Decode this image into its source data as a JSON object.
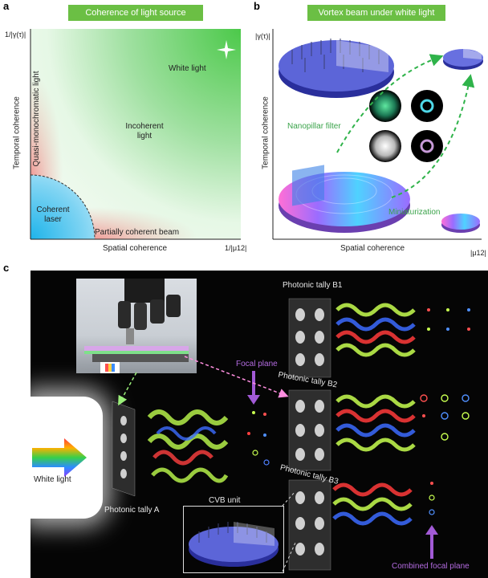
{
  "panel_a": {
    "letter": "a",
    "banner": "Coherence of light source",
    "y_axis_marker": "1/|γ(τ)|",
    "x_axis_marker": "1/|μ12|",
    "y_label": "Temporal coherence",
    "x_label": "Spatial coherence",
    "regions": {
      "white": "White light",
      "incoherent_1": "Incoherent",
      "incoherent_2": "light",
      "quasi": "Quasi-monochromatic light",
      "coherent_1": "Coherent",
      "coherent_2": "laser",
      "partial": "Partially coherent beam"
    }
  },
  "panel_b": {
    "letter": "b",
    "banner": "Vortex beam under white light",
    "y_axis_marker": "|γ(τ)|",
    "x_axis_marker": "|μ12|",
    "y_label": "Temporal coherence",
    "x_label": "Spatial coherence",
    "nanopillar": "Nanopillar filter",
    "miniaturization": "Miniaturization"
  },
  "panel_c": {
    "letter": "c",
    "tally_b1": "Photonic tally B1",
    "tally_b2": "Photonic tally B2",
    "tally_b3": "Photonic tally B3",
    "tally_a": "Photonic tally A",
    "focal_plane": "Focal plane",
    "combined_focal_plane": "Combined focal plane",
    "white_light": "White light",
    "cvb_unit": "CVB unit"
  },
  "colors": {
    "banner_green": "#6bbf44",
    "label_green": "#3aa34a",
    "purple": "#b36be0",
    "cyan": "#2ab6e8",
    "red_region": "#f28b8b"
  }
}
